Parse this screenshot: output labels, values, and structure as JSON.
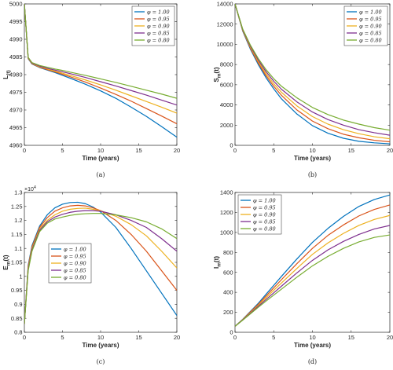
{
  "colors": [
    "#0072BD",
    "#D95319",
    "#EDB120",
    "#7E2F8E",
    "#77AC30"
  ],
  "chart_data": [
    {
      "type": "line",
      "caption": "(a)",
      "xlabel": "Time (years)",
      "ylabel": "L(t)",
      "ylabel_main": "L",
      "ylabel_sub": "(t)",
      "exponent_label": "",
      "xlim": [
        0,
        20
      ],
      "ylim": [
        4960,
        5000
      ],
      "xticks": [
        0,
        5,
        10,
        15,
        20
      ],
      "yticks": [
        4960,
        4965,
        4970,
        4975,
        4980,
        4985,
        4990,
        4995,
        5000
      ],
      "legend_position": "top-right",
      "x": [
        0,
        0.5,
        1,
        2,
        3,
        4,
        5,
        6,
        8,
        10,
        12,
        14,
        16,
        18,
        20
      ],
      "series": [
        {
          "name": "φ = 1.00",
          "values": [
            5000,
            4984.5,
            4983.0,
            4982.0,
            4981.3,
            4980.6,
            4979.8,
            4979.0,
            4977.3,
            4975.4,
            4973.3,
            4970.8,
            4968.2,
            4965.3,
            4962.3
          ]
        },
        {
          "name": "φ = 0.95",
          "values": [
            5000,
            4984.6,
            4983.1,
            4982.1,
            4981.4,
            4980.8,
            4980.1,
            4979.4,
            4977.9,
            4976.2,
            4974.4,
            4972.5,
            4970.4,
            4968.3,
            4966.1
          ]
        },
        {
          "name": "φ = 0.90",
          "values": [
            5000,
            4984.7,
            4983.2,
            4982.2,
            4981.6,
            4981.0,
            4980.4,
            4979.8,
            4978.5,
            4977.1,
            4975.6,
            4974.0,
            4972.4,
            4970.8,
            4969.1
          ]
        },
        {
          "name": "φ = 0.85",
          "values": [
            5000,
            4984.8,
            4983.3,
            4982.4,
            4981.8,
            4981.3,
            4980.8,
            4980.3,
            4979.2,
            4978.0,
            4976.8,
            4975.5,
            4974.2,
            4972.8,
            4971.4
          ]
        },
        {
          "name": "φ = 0.80",
          "values": [
            5000,
            4984.9,
            4983.4,
            4982.6,
            4982.1,
            4981.6,
            4981.2,
            4980.7,
            4979.8,
            4978.8,
            4977.8,
            4976.7,
            4975.6,
            4974.5,
            4973.3
          ]
        }
      ]
    },
    {
      "type": "line",
      "caption": "(b)",
      "xlabel": "Time (years)",
      "ylabel": "S_m(t)",
      "ylabel_main": "S",
      "ylabel_sub": "m",
      "ylabel_tail": "(t)",
      "exponent_label": "",
      "xlim": [
        0,
        20
      ],
      "ylim": [
        0,
        14000
      ],
      "xticks": [
        0,
        5,
        10,
        15,
        20
      ],
      "yticks": [
        0,
        2000,
        4000,
        6000,
        8000,
        10000,
        12000,
        14000
      ],
      "legend_position": "top-right",
      "x": [
        0,
        1,
        2,
        3,
        4,
        5,
        6,
        8,
        10,
        12,
        14,
        16,
        18,
        20
      ],
      "series": [
        {
          "name": "φ = 1.00",
          "values": [
            14000,
            11300,
            9500,
            8000,
            6700,
            5600,
            4600,
            3100,
            1950,
            1200,
            700,
            400,
            250,
            150
          ]
        },
        {
          "name": "φ = 0.95",
          "values": [
            14000,
            11350,
            9600,
            8150,
            6900,
            5850,
            4950,
            3500,
            2400,
            1650,
            1100,
            750,
            500,
            350
          ]
        },
        {
          "name": "φ = 0.90",
          "values": [
            14000,
            11400,
            9700,
            8300,
            7100,
            6100,
            5250,
            3900,
            2850,
            2100,
            1550,
            1150,
            850,
            650
          ]
        },
        {
          "name": "φ = 0.85",
          "values": [
            14000,
            11450,
            9800,
            8450,
            7300,
            6350,
            5550,
            4300,
            3300,
            2550,
            2000,
            1550,
            1250,
            1000
          ]
        },
        {
          "name": "φ = 0.80",
          "values": [
            14000,
            11500,
            9900,
            8600,
            7500,
            6600,
            5850,
            4700,
            3750,
            3050,
            2500,
            2100,
            1750,
            1500
          ]
        }
      ]
    },
    {
      "type": "line",
      "caption": "(c)",
      "xlabel": "Time (years)",
      "ylabel": "E_m(t)",
      "ylabel_main": "E",
      "ylabel_sub": "m",
      "ylabel_tail": "(t)",
      "exponent_label": "×10",
      "exponent_power": "4",
      "xlim": [
        0,
        20
      ],
      "ylim": [
        0.8,
        1.3
      ],
      "xticks": [
        0,
        5,
        10,
        15,
        20
      ],
      "yticks": [
        0.8,
        0.85,
        0.9,
        0.95,
        1.0,
        1.05,
        1.1,
        1.15,
        1.2,
        1.25,
        1.3
      ],
      "ytick_labels": [
        "0.8",
        "0.85",
        "0.9",
        "0.95",
        "1",
        "1.05",
        "1.1",
        "1.15",
        "1.2",
        "1.25",
        "1.3"
      ],
      "legend_position": "center-right",
      "x": [
        0,
        0.5,
        1,
        2,
        3,
        4,
        5,
        6,
        7,
        8,
        9,
        10,
        12,
        14,
        16,
        18,
        20
      ],
      "series": [
        {
          "name": "φ = 1.00",
          "values": [
            0.83,
            1.04,
            1.11,
            1.18,
            1.22,
            1.245,
            1.258,
            1.264,
            1.265,
            1.26,
            1.248,
            1.23,
            1.175,
            1.1,
            1.02,
            0.94,
            0.86
          ]
        },
        {
          "name": "φ = 0.95",
          "values": [
            0.83,
            1.035,
            1.105,
            1.175,
            1.21,
            1.233,
            1.245,
            1.252,
            1.254,
            1.252,
            1.245,
            1.235,
            1.2,
            1.15,
            1.09,
            1.02,
            0.95
          ]
        },
        {
          "name": "φ = 0.90",
          "values": [
            0.83,
            1.03,
            1.1,
            1.17,
            1.2,
            1.22,
            1.233,
            1.24,
            1.243,
            1.244,
            1.24,
            1.235,
            1.215,
            1.185,
            1.145,
            1.09,
            1.03
          ]
        },
        {
          "name": "φ = 0.85",
          "values": [
            0.83,
            1.025,
            1.095,
            1.165,
            1.195,
            1.212,
            1.222,
            1.229,
            1.233,
            1.235,
            1.235,
            1.233,
            1.22,
            1.2,
            1.175,
            1.135,
            1.09
          ]
        },
        {
          "name": "φ = 0.80",
          "values": [
            0.83,
            1.02,
            1.09,
            1.16,
            1.19,
            1.205,
            1.212,
            1.218,
            1.222,
            1.224,
            1.225,
            1.225,
            1.22,
            1.21,
            1.195,
            1.17,
            1.135
          ]
        }
      ]
    },
    {
      "type": "line",
      "caption": "(d)",
      "xlabel": "Time (years)",
      "ylabel": "I_m(t)",
      "ylabel_main": "I",
      "ylabel_sub": "m",
      "ylabel_tail": "(t)",
      "exponent_label": "",
      "xlim": [
        0,
        20
      ],
      "ylim": [
        0,
        1400
      ],
      "xticks": [
        0,
        5,
        10,
        15,
        20
      ],
      "yticks": [
        0,
        200,
        400,
        600,
        800,
        1000,
        1200,
        1400
      ],
      "legend_position": "top-left",
      "x": [
        0,
        1,
        2,
        3,
        4,
        5,
        6,
        8,
        10,
        12,
        14,
        16,
        18,
        20
      ],
      "series": [
        {
          "name": "φ = 1.00",
          "values": [
            60,
            130,
            210,
            290,
            380,
            470,
            560,
            735,
            900,
            1040,
            1160,
            1260,
            1330,
            1375
          ]
        },
        {
          "name": "φ = 0.95",
          "values": [
            60,
            128,
            205,
            280,
            362,
            445,
            527,
            688,
            840,
            970,
            1075,
            1165,
            1230,
            1275
          ]
        },
        {
          "name": "φ = 0.90",
          "values": [
            60,
            126,
            198,
            270,
            345,
            420,
            494,
            640,
            780,
            895,
            990,
            1070,
            1130,
            1170
          ]
        },
        {
          "name": "φ = 0.85",
          "values": [
            60,
            124,
            192,
            260,
            328,
            395,
            462,
            595,
            720,
            825,
            910,
            980,
            1035,
            1070
          ]
        },
        {
          "name": "φ = 0.80",
          "values": [
            60,
            122,
            186,
            250,
            312,
            372,
            432,
            552,
            665,
            760,
            840,
            905,
            950,
            975
          ]
        }
      ]
    }
  ]
}
